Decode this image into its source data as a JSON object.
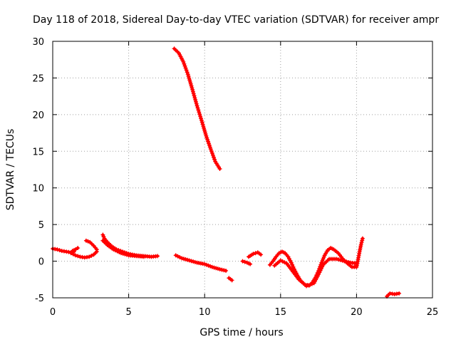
{
  "chart_data": {
    "type": "scatter",
    "title": "Day 118 of 2018, Sidereal Day-to-day VTEC variation (SDTVAR) for receiver ampr",
    "xlabel": "GPS time / hours",
    "ylabel": "SDTVAR / TECUs",
    "xlim": [
      0,
      25
    ],
    "ylim": [
      -5,
      30
    ],
    "xticks": [
      0,
      5,
      10,
      15,
      20,
      25
    ],
    "yticks": [
      -5,
      0,
      5,
      10,
      15,
      20,
      25,
      30
    ],
    "grid": true,
    "legend": "none",
    "marker": "+",
    "series": [
      {
        "color": "#ff0000",
        "segments": [
          [
            [
              0.0,
              1.7
            ],
            [
              0.3,
              1.6
            ],
            [
              0.6,
              1.4
            ],
            [
              0.9,
              1.3
            ],
            [
              1.2,
              1.2
            ],
            [
              1.4,
              1.3
            ]
          ],
          [
            [
              1.3,
              1.4
            ],
            [
              1.5,
              1.6
            ],
            [
              1.65,
              1.8
            ]
          ],
          [
            [
              1.2,
              1.1
            ],
            [
              1.5,
              0.8
            ],
            [
              1.8,
              0.6
            ],
            [
              2.1,
              0.5
            ],
            [
              2.4,
              0.6
            ],
            [
              2.7,
              0.9
            ],
            [
              2.9,
              1.3
            ]
          ],
          [
            [
              2.2,
              2.8
            ],
            [
              2.45,
              2.6
            ],
            [
              2.7,
              2.1
            ],
            [
              2.9,
              1.6
            ]
          ],
          [
            [
              3.3,
              3.6
            ],
            [
              3.4,
              3.1
            ],
            [
              3.6,
              2.6
            ],
            [
              3.9,
              2.0
            ],
            [
              4.2,
              1.6
            ],
            [
              4.6,
              1.3
            ],
            [
              5.0,
              1.0
            ],
            [
              5.5,
              0.8
            ],
            [
              6.0,
              0.7
            ],
            [
              6.5,
              0.6
            ],
            [
              6.9,
              0.7
            ]
          ],
          [
            [
              3.3,
              2.8
            ],
            [
              3.6,
              2.2
            ],
            [
              4.0,
              1.6
            ],
            [
              4.5,
              1.1
            ],
            [
              5.0,
              0.8
            ],
            [
              5.5,
              0.7
            ],
            [
              6.0,
              0.6
            ]
          ],
          [
            [
              8.0,
              29.0
            ],
            [
              8.3,
              28.4
            ],
            [
              8.6,
              27.2
            ],
            [
              8.9,
              25.5
            ],
            [
              9.2,
              23.4
            ],
            [
              9.5,
              21.2
            ],
            [
              9.8,
              19.2
            ],
            [
              10.1,
              17.1
            ],
            [
              10.4,
              15.3
            ],
            [
              10.7,
              13.6
            ],
            [
              11.0,
              12.6
            ]
          ],
          [
            [
              8.1,
              0.8
            ],
            [
              8.5,
              0.4
            ],
            [
              9.0,
              0.1
            ],
            [
              9.5,
              -0.2
            ],
            [
              10.0,
              -0.4
            ],
            [
              10.5,
              -0.8
            ],
            [
              11.0,
              -1.1
            ],
            [
              11.4,
              -1.3
            ]
          ],
          [
            [
              11.6,
              -2.3
            ],
            [
              11.8,
              -2.6
            ]
          ],
          [
            [
              12.5,
              0.0
            ],
            [
              12.8,
              -0.2
            ],
            [
              13.0,
              -0.4
            ]
          ],
          [
            [
              12.9,
              0.6
            ],
            [
              13.2,
              1.0
            ],
            [
              13.5,
              1.2
            ],
            [
              13.7,
              0.9
            ]
          ],
          [
            [
              14.3,
              -0.5
            ],
            [
              14.5,
              0.0
            ],
            [
              14.7,
              0.6
            ],
            [
              14.9,
              1.1
            ],
            [
              15.1,
              1.3
            ],
            [
              15.3,
              1.1
            ],
            [
              15.5,
              0.6
            ],
            [
              15.7,
              -0.2
            ],
            [
              15.9,
              -1.1
            ],
            [
              16.1,
              -1.9
            ],
            [
              16.3,
              -2.6
            ],
            [
              16.6,
              -3.2
            ],
            [
              16.9,
              -3.3
            ],
            [
              17.1,
              -2.9
            ],
            [
              17.3,
              -2.2
            ],
            [
              17.5,
              -1.3
            ],
            [
              17.7,
              -0.2
            ],
            [
              17.9,
              0.8
            ],
            [
              18.1,
              1.5
            ],
            [
              18.3,
              1.8
            ],
            [
              18.5,
              1.6
            ],
            [
              18.8,
              1.1
            ],
            [
              19.1,
              0.3
            ],
            [
              19.4,
              -0.3
            ],
            [
              19.7,
              -0.8
            ],
            [
              20.0,
              -0.8
            ],
            [
              20.1,
              0.2
            ],
            [
              20.2,
              1.3
            ],
            [
              20.3,
              2.3
            ],
            [
              20.4,
              3.1
            ]
          ],
          [
            [
              14.6,
              -0.6
            ],
            [
              15.0,
              0.1
            ],
            [
              15.4,
              -0.3
            ],
            [
              15.8,
              -1.4
            ],
            [
              16.2,
              -2.5
            ],
            [
              16.7,
              -3.4
            ],
            [
              17.2,
              -3.0
            ],
            [
              17.5,
              -1.8
            ],
            [
              17.8,
              -0.5
            ],
            [
              18.2,
              0.3
            ],
            [
              18.7,
              0.3
            ],
            [
              19.2,
              0.0
            ],
            [
              19.6,
              -0.2
            ],
            [
              20.0,
              -0.3
            ]
          ],
          [
            [
              22.0,
              -4.8
            ],
            [
              22.2,
              -4.4
            ],
            [
              22.5,
              -4.5
            ],
            [
              22.8,
              -4.4
            ]
          ]
        ]
      }
    ]
  }
}
